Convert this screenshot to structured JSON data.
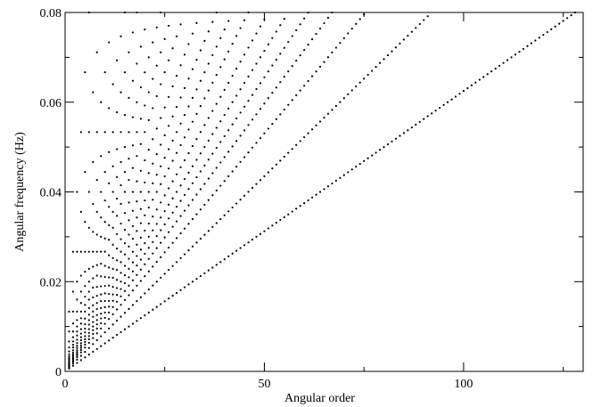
{
  "chart_data": {
    "type": "scatter",
    "title": "",
    "xlabel": "Angular order",
    "ylabel": "Angular frequency (Hz)",
    "xlim": [
      0,
      130
    ],
    "ylim": [
      0,
      0.08
    ],
    "x_ticks": [
      {
        "value": 0,
        "label": "0"
      },
      {
        "value": 50,
        "label": "50"
      },
      {
        "value": 100,
        "label": "100"
      }
    ],
    "y_ticks": [
      {
        "value": 0,
        "label": "0"
      },
      {
        "value": 0.02,
        "label": "0.02"
      },
      {
        "value": 0.04,
        "label": "0.04"
      },
      {
        "value": 0.06,
        "label": "0.06"
      },
      {
        "value": 0.08,
        "label": "0.08"
      }
    ],
    "x_minor_step": 25,
    "y_minor_step": 0.01,
    "grid": false,
    "legend": "none",
    "marker_color": "#000000",
    "series": [
      {
        "slope": 0.000625,
        "x_end": 128
      },
      {
        "slope": 0.00087,
        "x_end": 92
      },
      {
        "slope": 0.001061,
        "x_end": 75
      },
      {
        "slope": 0.001194,
        "x_end": 67
      },
      {
        "slope": 0.001311,
        "x_end": 61
      },
      {
        "slope": 0.001429,
        "x_end": 56
      },
      {
        "slope": 0.001569,
        "x_end": 51
      },
      {
        "slope": 0.001739,
        "x_end": 46
      },
      {
        "slope": 0.001905,
        "x_end": 42
      },
      {
        "slope": 0.002105,
        "x_end": 38
      },
      {
        "slope": 0.002353,
        "x_end": 34
      },
      {
        "slope": 0.002667,
        "x_end": 30
      },
      {
        "slope": 0.002963,
        "x_end": 27
      },
      {
        "slope": 0.003333,
        "x_end": 24
      },
      {
        "slope": 0.00381,
        "x_end": 21
      },
      {
        "slope": 0.004444,
        "x_end": 18
      },
      {
        "slope": 0.005333,
        "x_end": 15
      },
      {
        "slope": 0.006667,
        "x_end": 12
      },
      {
        "slope": 0.008889,
        "x_end": 9
      },
      {
        "slope": 0.013333,
        "x_end": 6
      }
    ]
  }
}
